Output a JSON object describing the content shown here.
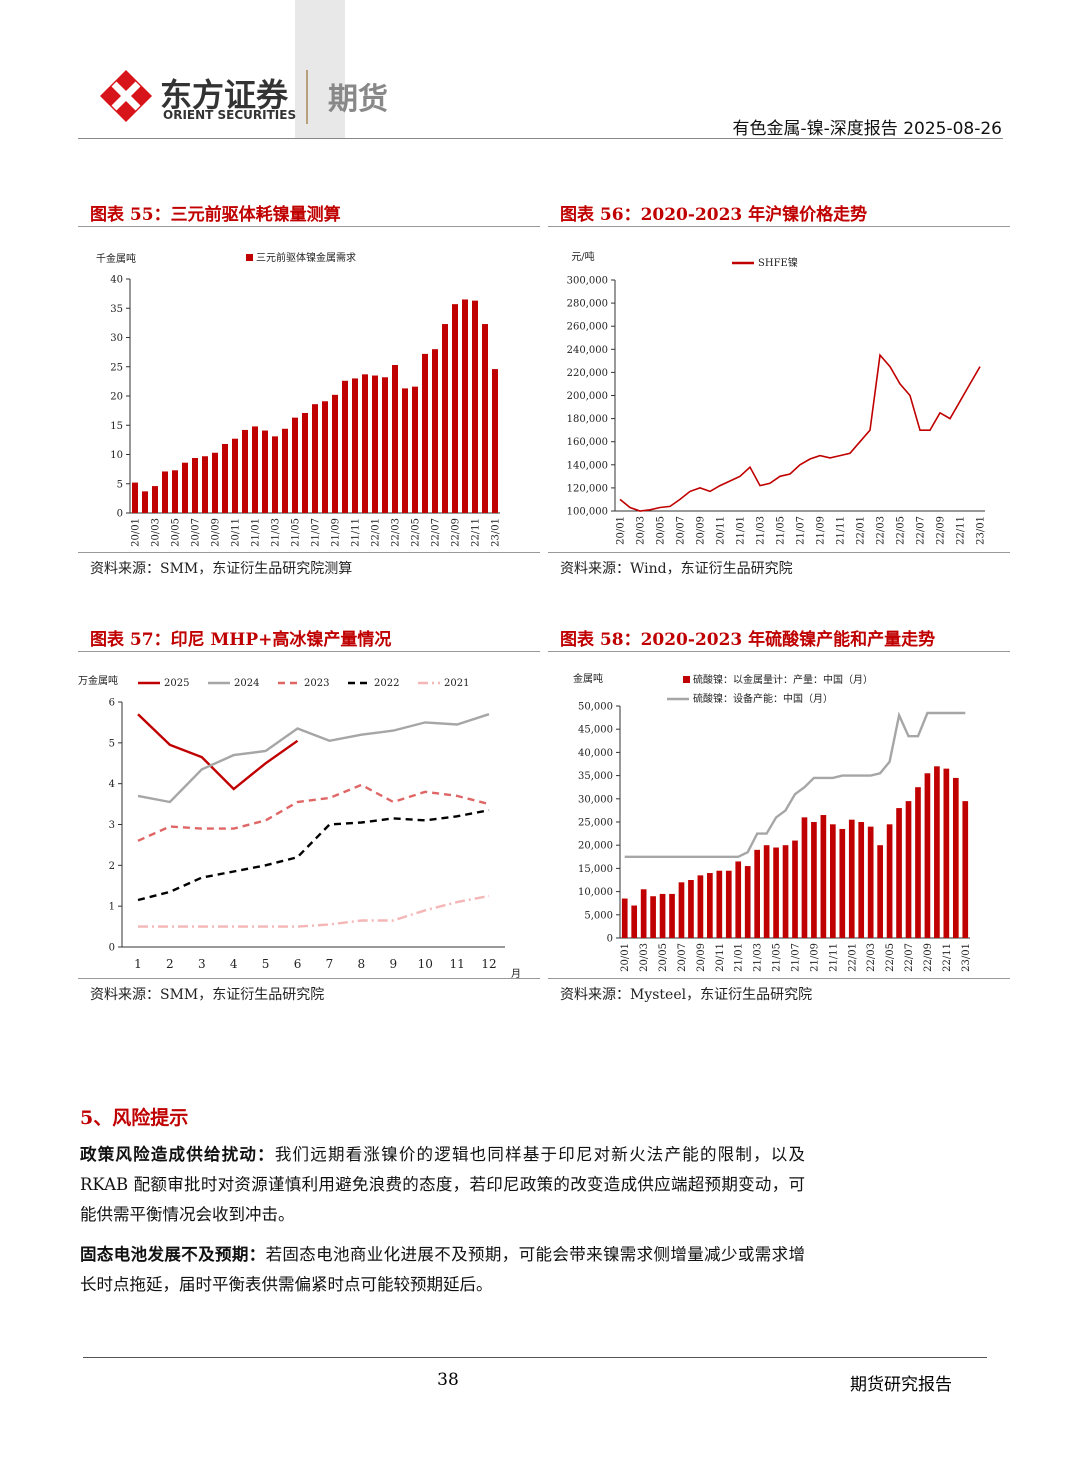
{
  "header": {
    "logo_cn": "东方证券",
    "logo_en": "ORIENT SECURITIES",
    "division": "期货",
    "report": "有色金属-镍-深度报告 2025-08-26"
  },
  "chart_data": [
    {
      "type": "bar",
      "title": "图表 55：三元前驱体耗镍量测算",
      "source": "资料来源：SMM，东证衍生品研究院测算",
      "y_label": "千金属吨",
      "categories": [
        "20/01",
        null,
        "20/03",
        null,
        "20/05",
        null,
        "20/07",
        null,
        "20/09",
        null,
        "20/11",
        null,
        "21/01",
        null,
        "21/03",
        null,
        "21/05",
        null,
        "21/07",
        null,
        "21/09",
        null,
        "21/11",
        null,
        "22/01",
        null,
        "22/03",
        null,
        "22/05",
        null,
        "22/07",
        null,
        "22/09",
        null,
        "22/11",
        null,
        "23/01"
      ],
      "series": [
        {
          "name": "三元前驱体镍金属需求",
          "color": "#c00000",
          "kind": "bar",
          "values": [
            5.2,
            3.7,
            4.6,
            7.1,
            7.3,
            8.6,
            9.4,
            9.7,
            10.3,
            11.8,
            12.7,
            14.2,
            14.8,
            14.1,
            13.1,
            14.4,
            16.3,
            17.1,
            18.6,
            19.1,
            20.2,
            22.6,
            23.0,
            23.7,
            23.5,
            23.2,
            25.3,
            21.3,
            21.6,
            27.2,
            28.0,
            32.3,
            35.7,
            36.5,
            36.3,
            32.3,
            24.6
          ]
        }
      ],
      "ylim": [
        0,
        40
      ],
      "yticks": [
        0,
        5,
        10,
        15,
        20,
        25,
        30,
        35,
        40
      ]
    },
    {
      "type": "line",
      "title": "图表 56：2020-2023 年沪镍价格走势",
      "source": "资料来源：Wind，东证衍生品研究院",
      "y_label": "元/吨",
      "categories": [
        "20/01",
        null,
        "20/03",
        null,
        "20/05",
        null,
        "20/07",
        null,
        "20/09",
        null,
        "20/11",
        null,
        "21/01",
        null,
        "21/03",
        null,
        "21/05",
        null,
        "21/07",
        null,
        "21/09",
        null,
        "21/11",
        null,
        "22/01",
        null,
        "22/03",
        null,
        "22/05",
        null,
        "22/07",
        null,
        "22/09",
        null,
        "22/11",
        null,
        "23/01"
      ],
      "series": [
        {
          "name": "SHFE镍",
          "color": "#c00000",
          "kind": "line",
          "line_style": "solid",
          "values": [
            110000,
            103000,
            100000,
            101000,
            103000,
            104000,
            110000,
            117000,
            120000,
            117000,
            122000,
            126000,
            130000,
            138000,
            122000,
            124000,
            130000,
            132000,
            140000,
            145000,
            148000,
            146000,
            148000,
            150000,
            160000,
            170000,
            235000,
            225000,
            210000,
            200000,
            170000,
            170000,
            185000,
            180000,
            195000,
            210000,
            225000
          ]
        }
      ],
      "ylim": [
        100000,
        300000
      ],
      "yticks": [
        {
          "value": 100000,
          "label": "100,000"
        },
        {
          "value": 120000,
          "label": "120,000"
        },
        {
          "value": 140000,
          "label": "140,000"
        },
        {
          "value": 160000,
          "label": "160,000"
        },
        {
          "value": 180000,
          "label": "180,000"
        },
        {
          "value": 200000,
          "label": "200,000"
        },
        {
          "value": 220000,
          "label": "220,000"
        },
        {
          "value": 240000,
          "label": "240,000"
        },
        {
          "value": 260000,
          "label": "260,000"
        },
        {
          "value": 280000,
          "label": "280,000"
        },
        {
          "value": 300000,
          "label": "300,000"
        }
      ]
    },
    {
      "type": "line",
      "title": "图表 57：印尼 MHP+高冰镍产量情况",
      "source": "资料来源：SMM，东证衍生品研究院",
      "y_label": "万金属吨",
      "x_label": "月",
      "categories": [
        1,
        2,
        3,
        4,
        5,
        6,
        7,
        8,
        9,
        10,
        11,
        12
      ],
      "series": [
        {
          "name": "2025",
          "color": "#c00000",
          "kind": "line",
          "line_style": "solid",
          "values": [
            5.7,
            4.95,
            4.65,
            3.87,
            4.5,
            5.05,
            null,
            null,
            null,
            null,
            null,
            null
          ]
        },
        {
          "name": "2024",
          "color": "#a6a6a6",
          "kind": "line",
          "line_style": "solid",
          "values": [
            3.7,
            3.55,
            4.35,
            4.7,
            4.8,
            5.35,
            5.05,
            5.2,
            5.3,
            5.5,
            5.45,
            5.7
          ]
        },
        {
          "name": "2023",
          "color": "#e06666",
          "kind": "line",
          "line_style": "dashed",
          "values": [
            2.6,
            2.95,
            2.9,
            2.9,
            3.1,
            3.55,
            3.65,
            3.97,
            3.55,
            3.8,
            3.7,
            3.5
          ]
        },
        {
          "name": "2022",
          "color": "#000000",
          "kind": "line",
          "line_style": "dashed",
          "values": [
            1.15,
            1.35,
            1.7,
            1.85,
            2.0,
            2.2,
            3.0,
            3.05,
            3.15,
            3.1,
            3.2,
            3.35
          ]
        },
        {
          "name": "2021",
          "color": "#f4b6b6",
          "kind": "line",
          "line_style": "dashdot",
          "values": [
            0.5,
            0.5,
            0.5,
            0.5,
            0.5,
            0.5,
            0.55,
            0.65,
            0.65,
            0.9,
            1.1,
            1.25
          ]
        }
      ],
      "ylim": [
        0,
        6
      ],
      "yticks": [
        0,
        1,
        2,
        3,
        4,
        5,
        6
      ]
    },
    {
      "type": "combo",
      "title": "图表 58：2020-2023 年硫酸镍产能和产量走势",
      "source": "资料来源：Mysteel，东证衍生品研究院",
      "y_label": "金属吨",
      "categories": [
        "20/01",
        null,
        "20/03",
        null,
        "20/05",
        null,
        "20/07",
        null,
        "20/09",
        null,
        "20/11",
        null,
        "21/01",
        null,
        "21/03",
        null,
        "21/05",
        null,
        "21/07",
        null,
        "21/09",
        null,
        "21/11",
        null,
        "22/01",
        null,
        "22/03",
        null,
        "22/05",
        null,
        "22/07",
        null,
        "22/09",
        null,
        "22/11",
        null,
        "23/01"
      ],
      "series": [
        {
          "name": "硫酸镍：以金属量计：产量：中国（月）",
          "color": "#c00000",
          "kind": "bar",
          "values": [
            8500,
            7000,
            10500,
            9000,
            9500,
            9500,
            12000,
            12500,
            13500,
            14000,
            14500,
            14500,
            16500,
            15500,
            19000,
            20000,
            19500,
            20000,
            21000,
            26000,
            25000,
            26500,
            24500,
            23500,
            25500,
            25000,
            24000,
            20000,
            24500,
            28000,
            29500,
            32500,
            35500,
            37000,
            36500,
            34500,
            29500
          ]
        },
        {
          "name": "硫酸镍：设备产能：中国（月）",
          "color": "#a6a6a6",
          "kind": "line",
          "line_style": "solid",
          "values": [
            17500,
            17500,
            17500,
            17500,
            17500,
            17500,
            17500,
            17500,
            17500,
            17500,
            17500,
            17500,
            17500,
            18500,
            22500,
            22500,
            26000,
            27500,
            31000,
            32500,
            34500,
            34500,
            34500,
            35000,
            35000,
            35000,
            35000,
            35500,
            38000,
            48000,
            43500,
            43500,
            48500,
            48500,
            48500,
            48500,
            48500
          ]
        }
      ],
      "ylim": [
        0,
        50000
      ],
      "yticks": [
        0,
        {
          "value": 5000,
          "label": "5,000"
        },
        {
          "value": 10000,
          "label": "10,000"
        },
        {
          "value": 15000,
          "label": "15,000"
        },
        {
          "value": 20000,
          "label": "20,000"
        },
        {
          "value": 25000,
          "label": "25,000"
        },
        {
          "value": 30000,
          "label": "30,000"
        },
        {
          "value": 35000,
          "label": "35,000"
        },
        {
          "value": 40000,
          "label": "40,000"
        },
        {
          "value": 45000,
          "label": "45,000"
        },
        {
          "value": 50000,
          "label": "50,000"
        }
      ]
    }
  ],
  "section": {
    "heading": "5、风险提示",
    "paragraphs": [
      {
        "lead": "政策风险造成供给扰动：",
        "text": "我们远期看涨镍价的逻辑也同样基于印尼对新火法产能的限制，以及 RKAB 配额审批时对资源谨慎利用避免浪费的态度，若印尼政策的改变造成供应端超预期变动，可能供需平衡情况会收到冲击。"
      },
      {
        "lead": "固态电池发展不及预期：",
        "text": "若固态电池商业化进展不及预期，可能会带来镍需求侧增量减少或需求增长时点拖延，届时平衡表供需偏紧时点可能较预期延后。"
      }
    ]
  },
  "footer": {
    "page": 38,
    "label": "期货研究报告"
  }
}
